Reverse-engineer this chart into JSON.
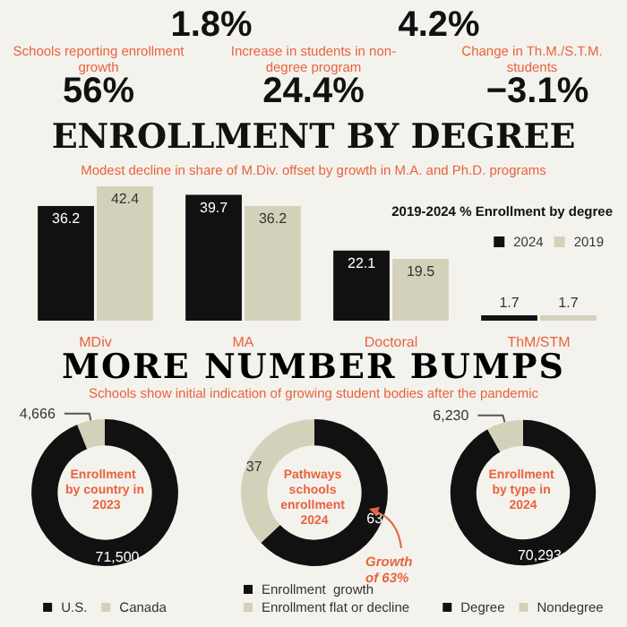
{
  "chart_data": [
    {
      "type": "other",
      "annotations": [
        "1.8%",
        "4.2%",
        "Schools reporting enrollment growth",
        "Increase in students in non-degree program",
        "Change in Th.M./S.T.M. students",
        "56%",
        "24.4%",
        "−3.1%"
      ]
    },
    {
      "type": "bar",
      "title": "ENROLLMENT BY DEGREE",
      "subtitle": "Modest decline in share of M.Div. offset by growth in M.A. and Ph.D. programs",
      "legend_title": "2019-2024 % Enrollment by degree",
      "legend": "top right",
      "data_labels": true,
      "categories": [
        "MDiv",
        "MA",
        "Doctoral",
        "ThM/STM"
      ],
      "series": [
        {
          "name": "2024",
          "color": "#111111",
          "values": [
            36.2,
            39.7,
            22.1,
            1.7
          ]
        },
        {
          "name": "2019",
          "color": "#d4d1bb",
          "values": [
            42.4,
            36.2,
            19.5,
            1.7
          ]
        }
      ]
    },
    {
      "type": "other",
      "title": "MORE NUMBER BUMPS",
      "subtitle": "Schools show initial indication of growing student bodies after the pandemic"
    },
    {
      "type": "donut",
      "title": "Enrollment by country in 2023",
      "legend": "bottom",
      "categories": [
        "U.S.",
        "Canada"
      ],
      "values": [
        71500,
        4666
      ],
      "value_labels": [
        "71,500",
        "4,666"
      ],
      "colors": [
        "#111111",
        "#d4d1bb"
      ]
    },
    {
      "type": "donut",
      "title": "Pathways schools enrollment 2024",
      "legend": "bottom",
      "categories": [
        "Enrollment  growth",
        "Enrollment flat or decline"
      ],
      "values": [
        63,
        37
      ],
      "value_labels": [
        "63",
        "37"
      ],
      "colors": [
        "#111111",
        "#d4d1bb"
      ],
      "annotations": [
        "Growth of 63%"
      ]
    },
    {
      "type": "donut",
      "title": "Enrollment by type in 2024",
      "legend": "bottom",
      "categories": [
        "Degree",
        "Nondegree"
      ],
      "values": [
        70293,
        6230
      ],
      "value_labels": [
        "70,293",
        "6,230"
      ],
      "colors": [
        "#111111",
        "#d4d1bb"
      ]
    }
  ]
}
